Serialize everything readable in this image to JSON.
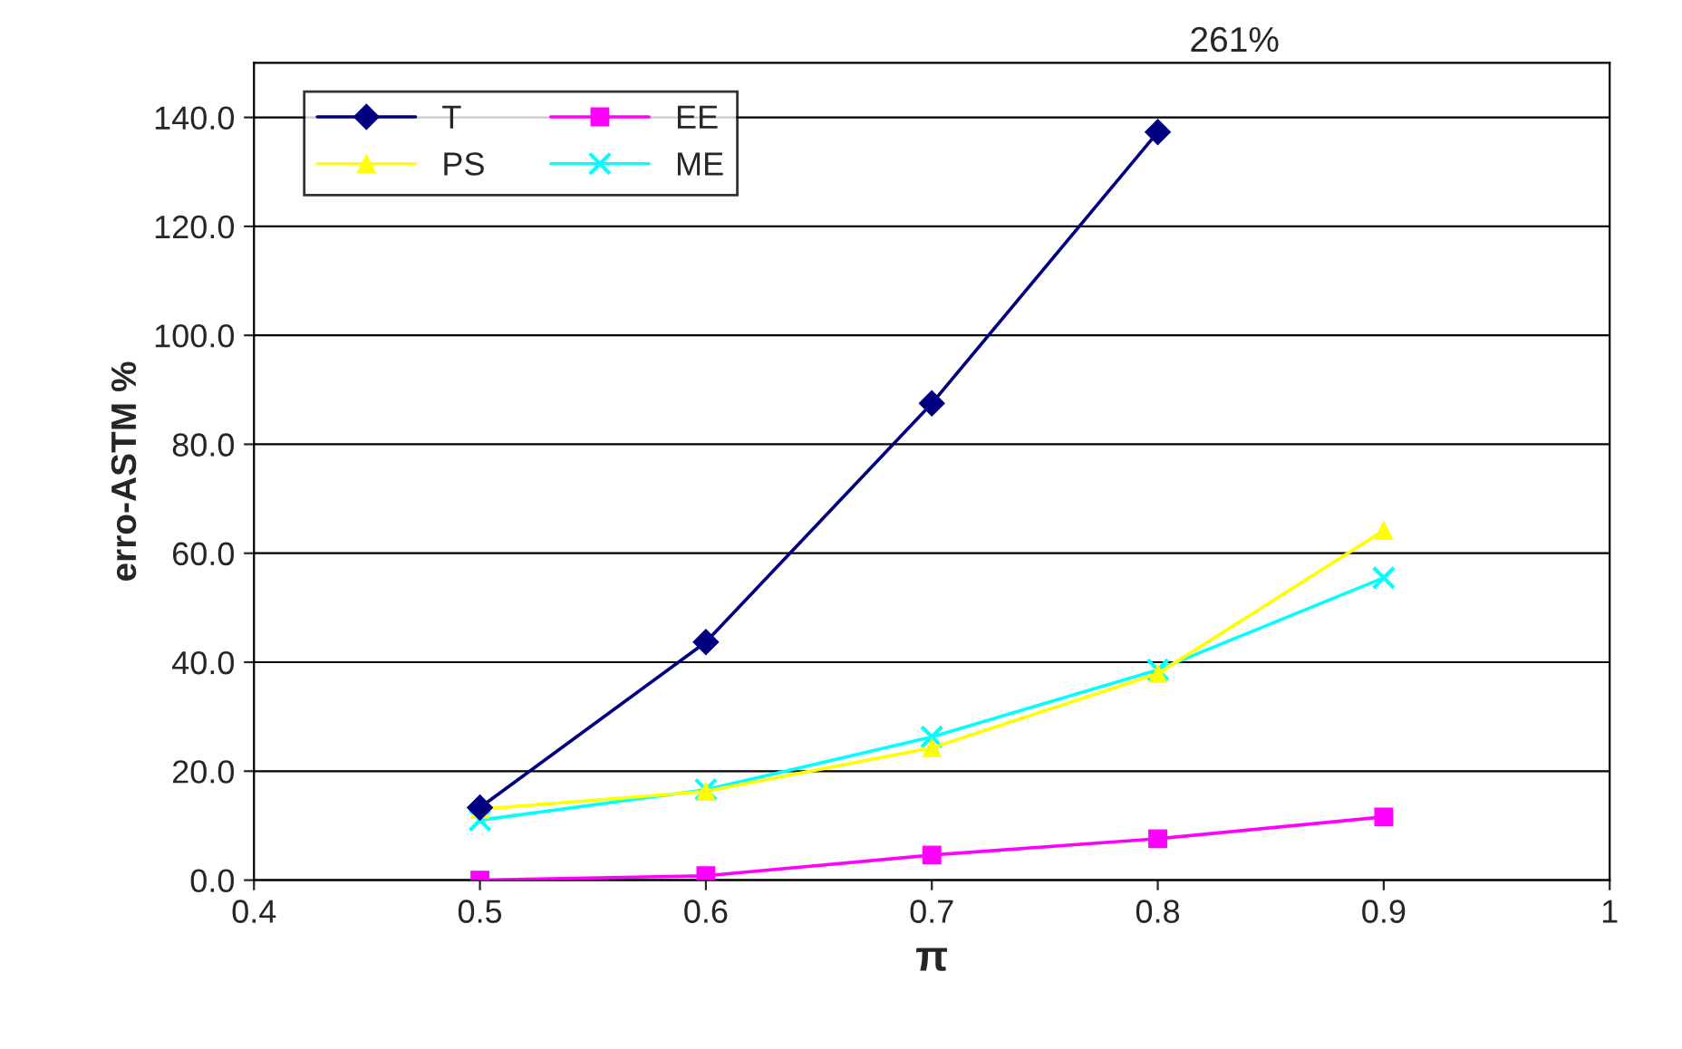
{
  "chart_data": {
    "type": "line",
    "xlabel": "π",
    "ylabel": "erro-ASTM %",
    "x": [
      0.5,
      0.6,
      0.7,
      0.8,
      0.9
    ],
    "series": [
      {
        "name": "T",
        "color": "#000080",
        "marker": "diamond",
        "values": [
          13.3,
          43.7,
          87.5,
          137.3,
          null
        ]
      },
      {
        "name": "EE",
        "color": "#ff00ff",
        "marker": "square",
        "values": [
          0.0,
          0.8,
          4.6,
          7.6,
          11.6
        ]
      },
      {
        "name": "PS",
        "color": "#ffff00",
        "marker": "triangle",
        "values": [
          13.0,
          16.3,
          24.3,
          37.9,
          64.2
        ]
      },
      {
        "name": "ME",
        "color": "#00ffff",
        "marker": "cross",
        "values": [
          11.0,
          16.6,
          26.3,
          38.6,
          55.5
        ]
      }
    ],
    "xlim": [
      0.4,
      1
    ],
    "ylim": [
      0,
      150
    ],
    "xticks": [
      0.4,
      0.5,
      0.6,
      0.7,
      0.8,
      0.9,
      {
        "value": 1,
        "label": "1"
      }
    ],
    "yticks": [
      {
        "value": 0,
        "label": "0.0"
      },
      {
        "value": 20,
        "label": "20.0"
      },
      {
        "value": 40,
        "label": "40.0"
      },
      {
        "value": 60,
        "label": "60.0"
      },
      {
        "value": 80,
        "label": "80.0"
      },
      {
        "value": 100,
        "label": "100.0"
      },
      {
        "value": 120,
        "label": "120.0"
      },
      {
        "value": 140,
        "label": "140.0"
      }
    ],
    "annotations": [
      "261%"
    ],
    "grid": "y",
    "legend": "top left",
    "line_style": "solid"
  }
}
